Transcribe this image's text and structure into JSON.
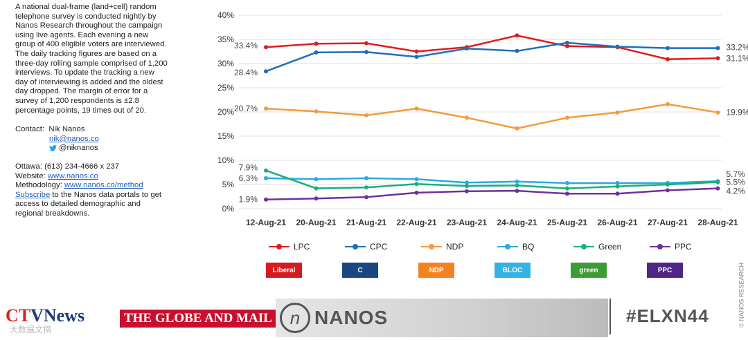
{
  "methodology": {
    "paragraph": "A national dual-frame (land+cell) random telephone survey is conducted nightly by Nanos Research throughout the campaign using live agents.  Each evening a new group of 400 eligible voters are interviewed.  The daily tracking figures are based on a three-day rolling sample comprised of 1,200 interviews.  To update the tracking a new day of interviewing is added and the oldest day dropped. The margin of error for a survey of 1,200 respondents is ±2.8 percentage points, 19 times out of 20.",
    "contact_label": "Contact:",
    "contact_name": "Nik Nanos",
    "contact_email": "nik@nanos.co",
    "contact_twitter": "@niknanos",
    "ottawa": "Ottawa: (613) 234-4666 x 237",
    "website_label": "Website: ",
    "website_url": "www.nanos.co",
    "methodology_label": "Methodology: ",
    "methodology_url": "www.nanos.co/method",
    "subscribe_link": "Subscribe",
    "subscribe_text": " to the Nanos data portals to get access to detailed demographic and regional breakdowns."
  },
  "chart_data": {
    "type": "line",
    "categories": [
      "12-Aug-21",
      "20-Aug-21",
      "21-Aug-21",
      "22-Aug-21",
      "23-Aug-21",
      "24-Aug-21",
      "25-Aug-21",
      "26-Aug-21",
      "27-Aug-21",
      "28-Aug-21"
    ],
    "yticks": [
      "0%",
      "5%",
      "10%",
      "15%",
      "20%",
      "25%",
      "30%",
      "35%",
      "40%"
    ],
    "ylim": [
      0,
      40
    ],
    "series": [
      {
        "name": "LPC",
        "color": "#e31a1c",
        "values": [
          33.4,
          34.1,
          34.2,
          32.5,
          33.4,
          35.8,
          33.6,
          33.4,
          30.9,
          31.1
        ],
        "start_label": "33.4%",
        "end_label": "31.1%"
      },
      {
        "name": "CPC",
        "color": "#1f6fb8",
        "values": [
          28.4,
          32.3,
          32.4,
          31.4,
          33.1,
          32.6,
          34.3,
          33.5,
          33.2,
          33.2
        ],
        "start_label": "28.4%",
        "end_label": "33.2%"
      },
      {
        "name": "NDP",
        "color": "#f39a3c",
        "values": [
          20.7,
          20.1,
          19.3,
          20.7,
          18.8,
          16.6,
          18.8,
          19.9,
          21.6,
          19.9
        ],
        "start_label": "20.7%",
        "end_label": "19.9%"
      },
      {
        "name": "BQ",
        "color": "#29abe2",
        "values": [
          6.3,
          6.1,
          6.3,
          6.1,
          5.4,
          5.6,
          5.3,
          5.3,
          5.3,
          5.7
        ],
        "start_label": "6.3%",
        "end_label": "5.7%"
      },
      {
        "name": "Green",
        "color": "#1ab077",
        "values": [
          7.9,
          4.2,
          4.4,
          5.1,
          4.7,
          4.8,
          4.2,
          4.6,
          5.0,
          5.5
        ],
        "start_label": "7.9%",
        "end_label": "5.5%"
      },
      {
        "name": "PPC",
        "color": "#7030a0",
        "values": [
          1.9,
          2.1,
          2.4,
          3.3,
          3.6,
          3.7,
          3.1,
          3.1,
          3.8,
          4.2
        ],
        "start_label": "1.9%",
        "end_label": "4.2%"
      }
    ]
  },
  "legend": [
    {
      "name": "LPC",
      "color": "#e31a1c",
      "logo": "Liberal",
      "logo_bg": "#d71920"
    },
    {
      "name": "CPC",
      "color": "#1f6fb8",
      "logo": "C",
      "logo_bg": "#1a4782"
    },
    {
      "name": "NDP",
      "color": "#f39a3c",
      "logo": "NDP",
      "logo_bg": "#f58220"
    },
    {
      "name": "BQ",
      "color": "#29abe2",
      "logo": "BLOC",
      "logo_bg": "#33b2e5"
    },
    {
      "name": "Green",
      "color": "#1ab077",
      "logo": "green",
      "logo_bg": "#3d9b35"
    },
    {
      "name": "PPC",
      "color": "#7030a0",
      "logo": "PPC",
      "logo_bg": "#4f2683"
    }
  ],
  "copyright": "© NANOS RESEARCH",
  "footer": {
    "ctv_ct": "CT",
    "ctv_rest": "VNews",
    "globe": "THE GLOBE AND MAIL",
    "nanos_n": "n",
    "nanos": "NANOS",
    "hashtag": "#ELXN44",
    "watermark": "大数据文摘"
  }
}
